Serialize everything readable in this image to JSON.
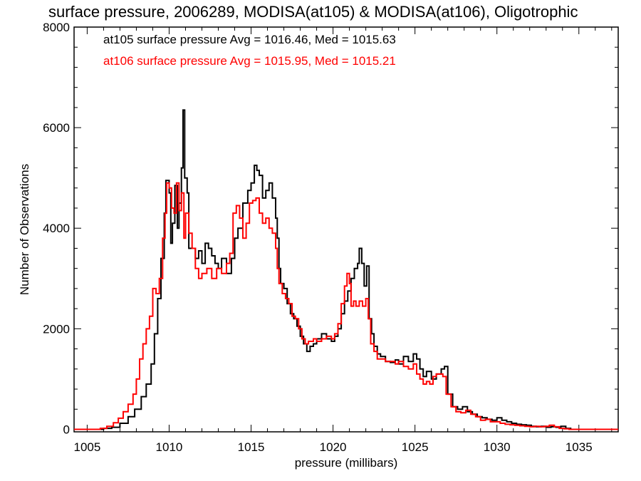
{
  "chart_data": {
    "type": "line",
    "title": "surface pressure, 2006289, MODISA(at105) & MODISA(at106), Oligotrophic",
    "xlabel": "pressure (millibars)",
    "ylabel": "Number of Observations",
    "xlim": [
      1004.2,
      1037.4
    ],
    "ylim": [
      -50,
      8000
    ],
    "xticks": [
      1005,
      1010,
      1015,
      1020,
      1025,
      1030,
      1035
    ],
    "yticks": [
      0,
      2000,
      4000,
      6000,
      8000
    ],
    "xtick_labels": [
      "1005",
      "1010",
      "1015",
      "1020",
      "1025",
      "1030",
      "1035"
    ],
    "ytick_labels": [
      "0",
      "2000",
      "4000",
      "6000",
      "8000"
    ],
    "grid": false,
    "legend": "top-left",
    "series": [
      {
        "name": "at105 surface pressure Avg = 1016.46, Med = 1015.63",
        "color": "#000000",
        "points": [
          [
            1004.2,
            0
          ],
          [
            1005.5,
            0
          ],
          [
            1006.0,
            20
          ],
          [
            1006.5,
            40
          ],
          [
            1007.0,
            120
          ],
          [
            1007.5,
            250
          ],
          [
            1007.9,
            400
          ],
          [
            1008.3,
            650
          ],
          [
            1008.6,
            900
          ],
          [
            1008.9,
            1300
          ],
          [
            1009.1,
            1900
          ],
          [
            1009.3,
            2600
          ],
          [
            1009.5,
            3400
          ],
          [
            1009.7,
            4300
          ],
          [
            1009.8,
            4950
          ],
          [
            1010.0,
            4700
          ],
          [
            1010.1,
            3700
          ],
          [
            1010.2,
            4100
          ],
          [
            1010.35,
            4850
          ],
          [
            1010.5,
            4000
          ],
          [
            1010.6,
            4500
          ],
          [
            1010.75,
            5200
          ],
          [
            1010.85,
            6350
          ],
          [
            1010.95,
            5000
          ],
          [
            1011.1,
            4700
          ],
          [
            1011.2,
            3600
          ],
          [
            1011.4,
            3600
          ],
          [
            1011.6,
            3400
          ],
          [
            1011.8,
            3550
          ],
          [
            1012.0,
            3300
          ],
          [
            1012.2,
            3700
          ],
          [
            1012.4,
            3600
          ],
          [
            1012.6,
            3450
          ],
          [
            1012.8,
            3300
          ],
          [
            1013.0,
            3200
          ],
          [
            1013.2,
            3400
          ],
          [
            1013.5,
            3100
          ],
          [
            1013.8,
            3400
          ],
          [
            1014.0,
            3800
          ],
          [
            1014.2,
            4000
          ],
          [
            1014.5,
            4500
          ],
          [
            1014.8,
            4750
          ],
          [
            1015.0,
            4900
          ],
          [
            1015.2,
            5250
          ],
          [
            1015.35,
            5150
          ],
          [
            1015.5,
            5050
          ],
          [
            1015.7,
            4600
          ],
          [
            1015.9,
            4750
          ],
          [
            1016.1,
            4900
          ],
          [
            1016.3,
            4600
          ],
          [
            1016.5,
            4200
          ],
          [
            1016.6,
            3800
          ],
          [
            1016.7,
            3200
          ],
          [
            1016.8,
            2900
          ],
          [
            1017.0,
            2800
          ],
          [
            1017.2,
            2500
          ],
          [
            1017.4,
            2300
          ],
          [
            1017.6,
            2200
          ],
          [
            1017.8,
            2050
          ],
          [
            1018.0,
            1850
          ],
          [
            1018.2,
            1700
          ],
          [
            1018.4,
            1550
          ],
          [
            1018.6,
            1650
          ],
          [
            1018.8,
            1700
          ],
          [
            1019.0,
            1800
          ],
          [
            1019.3,
            1900
          ],
          [
            1019.6,
            1800
          ],
          [
            1019.9,
            1750
          ],
          [
            1020.1,
            1850
          ],
          [
            1020.3,
            2000
          ],
          [
            1020.5,
            2300
          ],
          [
            1020.7,
            2550
          ],
          [
            1020.9,
            2750
          ],
          [
            1021.1,
            3000
          ],
          [
            1021.3,
            3200
          ],
          [
            1021.5,
            3300
          ],
          [
            1021.6,
            3600
          ],
          [
            1021.75,
            3300
          ],
          [
            1021.9,
            2850
          ],
          [
            1022.05,
            3250
          ],
          [
            1022.2,
            2200
          ],
          [
            1022.35,
            1900
          ],
          [
            1022.5,
            1650
          ],
          [
            1022.7,
            1500
          ],
          [
            1022.9,
            1450
          ],
          [
            1023.2,
            1350
          ],
          [
            1023.5,
            1330
          ],
          [
            1023.8,
            1380
          ],
          [
            1024.0,
            1300
          ],
          [
            1024.3,
            1450
          ],
          [
            1024.6,
            1350
          ],
          [
            1024.9,
            1500
          ],
          [
            1025.1,
            1400
          ],
          [
            1025.3,
            1200
          ],
          [
            1025.5,
            1050
          ],
          [
            1025.7,
            1150
          ],
          [
            1026.0,
            1000
          ],
          [
            1026.3,
            1100
          ],
          [
            1026.6,
            1200
          ],
          [
            1026.8,
            1250
          ],
          [
            1027.0,
            700
          ],
          [
            1027.3,
            450
          ],
          [
            1027.6,
            400
          ],
          [
            1027.9,
            450
          ],
          [
            1028.2,
            350
          ],
          [
            1028.5,
            300
          ],
          [
            1028.8,
            250
          ],
          [
            1029.1,
            230
          ],
          [
            1029.4,
            200
          ],
          [
            1029.7,
            180
          ],
          [
            1030.0,
            230
          ],
          [
            1030.3,
            180
          ],
          [
            1030.6,
            150
          ],
          [
            1030.9,
            120
          ],
          [
            1031.2,
            100
          ],
          [
            1031.5,
            90
          ],
          [
            1031.8,
            80
          ],
          [
            1032.1,
            60
          ],
          [
            1032.4,
            50
          ],
          [
            1032.7,
            60
          ],
          [
            1033.0,
            40
          ],
          [
            1033.3,
            50
          ],
          [
            1033.6,
            40
          ],
          [
            1033.9,
            60
          ],
          [
            1034.2,
            20
          ],
          [
            1034.5,
            0
          ],
          [
            1037.4,
            0
          ]
        ]
      },
      {
        "name": "at106 surface pressure Avg = 1015.95, Med = 1015.21",
        "color": "#ff0000",
        "points": [
          [
            1004.2,
            0
          ],
          [
            1005.4,
            0
          ],
          [
            1005.8,
            20
          ],
          [
            1006.2,
            60
          ],
          [
            1006.6,
            130
          ],
          [
            1006.9,
            220
          ],
          [
            1007.2,
            350
          ],
          [
            1007.5,
            500
          ],
          [
            1007.8,
            700
          ],
          [
            1008.0,
            1000
          ],
          [
            1008.2,
            1400
          ],
          [
            1008.4,
            1700
          ],
          [
            1008.6,
            2000
          ],
          [
            1008.8,
            2250
          ],
          [
            1009.0,
            2800
          ],
          [
            1009.2,
            2700
          ],
          [
            1009.4,
            3000
          ],
          [
            1009.6,
            3800
          ],
          [
            1009.75,
            4300
          ],
          [
            1009.85,
            4900
          ],
          [
            1010.0,
            4800
          ],
          [
            1010.15,
            4400
          ],
          [
            1010.3,
            4300
          ],
          [
            1010.45,
            4900
          ],
          [
            1010.6,
            4350
          ],
          [
            1010.75,
            4700
          ],
          [
            1010.9,
            3800
          ],
          [
            1011.0,
            4300
          ],
          [
            1011.2,
            3900
          ],
          [
            1011.4,
            3600
          ],
          [
            1011.6,
            3200
          ],
          [
            1011.8,
            3000
          ],
          [
            1012.0,
            3100
          ],
          [
            1012.3,
            3200
          ],
          [
            1012.6,
            3000
          ],
          [
            1012.9,
            3200
          ],
          [
            1013.2,
            3100
          ],
          [
            1013.5,
            3300
          ],
          [
            1013.7,
            3500
          ],
          [
            1013.9,
            4300
          ],
          [
            1014.1,
            4450
          ],
          [
            1014.3,
            4200
          ],
          [
            1014.5,
            3800
          ],
          [
            1014.7,
            4100
          ],
          [
            1014.9,
            4500
          ],
          [
            1015.1,
            4550
          ],
          [
            1015.3,
            4600
          ],
          [
            1015.5,
            4300
          ],
          [
            1015.7,
            4100
          ],
          [
            1015.9,
            4200
          ],
          [
            1016.1,
            4000
          ],
          [
            1016.3,
            3900
          ],
          [
            1016.5,
            3600
          ],
          [
            1016.6,
            3200
          ],
          [
            1016.7,
            2900
          ],
          [
            1016.9,
            2700
          ],
          [
            1017.1,
            2600
          ],
          [
            1017.3,
            2500
          ],
          [
            1017.5,
            2250
          ],
          [
            1017.7,
            2200
          ],
          [
            1017.9,
            2000
          ],
          [
            1018.1,
            1800
          ],
          [
            1018.3,
            1700
          ],
          [
            1018.5,
            1750
          ],
          [
            1018.8,
            1800
          ],
          [
            1019.0,
            1750
          ],
          [
            1019.3,
            1800
          ],
          [
            1019.6,
            1850
          ],
          [
            1019.9,
            1800
          ],
          [
            1020.1,
            1900
          ],
          [
            1020.3,
            2100
          ],
          [
            1020.5,
            2500
          ],
          [
            1020.7,
            2850
          ],
          [
            1020.85,
            3100
          ],
          [
            1021.0,
            2900
          ],
          [
            1021.1,
            2450
          ],
          [
            1021.25,
            2550
          ],
          [
            1021.4,
            2450
          ],
          [
            1021.6,
            2550
          ],
          [
            1021.8,
            2450
          ],
          [
            1022.0,
            2600
          ],
          [
            1022.15,
            2200
          ],
          [
            1022.3,
            1700
          ],
          [
            1022.5,
            1550
          ],
          [
            1022.7,
            1400
          ],
          [
            1022.9,
            1400
          ],
          [
            1023.2,
            1350
          ],
          [
            1023.5,
            1350
          ],
          [
            1023.8,
            1300
          ],
          [
            1024.0,
            1350
          ],
          [
            1024.3,
            1250
          ],
          [
            1024.6,
            1200
          ],
          [
            1024.9,
            1300
          ],
          [
            1025.1,
            1100
          ],
          [
            1025.3,
            1000
          ],
          [
            1025.5,
            900
          ],
          [
            1025.7,
            950
          ],
          [
            1025.9,
            900
          ],
          [
            1026.1,
            1050
          ],
          [
            1026.3,
            1100
          ],
          [
            1026.5,
            1100
          ],
          [
            1026.7,
            1050
          ],
          [
            1026.9,
            700
          ],
          [
            1027.2,
            450
          ],
          [
            1027.5,
            350
          ],
          [
            1027.8,
            330
          ],
          [
            1028.1,
            380
          ],
          [
            1028.4,
            300
          ],
          [
            1028.7,
            250
          ],
          [
            1029.0,
            180
          ],
          [
            1029.3,
            200
          ],
          [
            1029.6,
            150
          ],
          [
            1029.9,
            150
          ],
          [
            1030.2,
            120
          ],
          [
            1030.5,
            100
          ],
          [
            1030.8,
            90
          ],
          [
            1031.1,
            80
          ],
          [
            1031.4,
            70
          ],
          [
            1031.7,
            60
          ],
          [
            1032.0,
            50
          ],
          [
            1032.3,
            60
          ],
          [
            1032.6,
            50
          ],
          [
            1032.9,
            60
          ],
          [
            1033.2,
            80
          ],
          [
            1033.5,
            50
          ],
          [
            1033.8,
            20
          ],
          [
            1034.1,
            10
          ],
          [
            1034.4,
            0
          ],
          [
            1037.4,
            0
          ]
        ]
      }
    ]
  }
}
